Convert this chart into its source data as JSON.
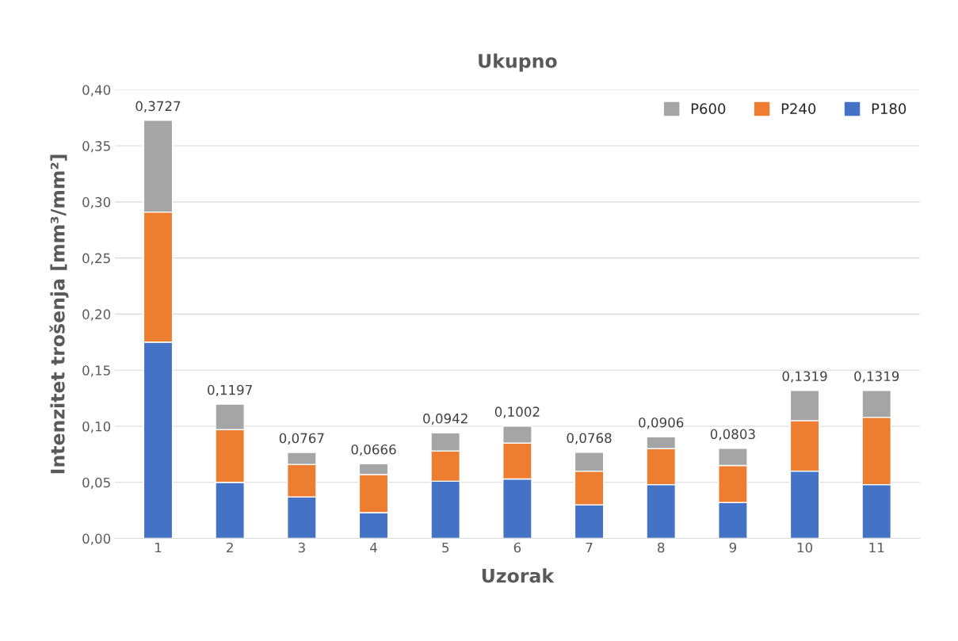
{
  "chart_data": {
    "type": "bar",
    "title": "Ukupno",
    "xlabel": "Uzorak",
    "ylabel": "Intenzitet trošenja [mm³/mm²]",
    "categories": [
      "1",
      "2",
      "3",
      "4",
      "5",
      "6",
      "7",
      "8",
      "9",
      "10",
      "11"
    ],
    "stacked": true,
    "series": [
      {
        "name": "P180",
        "color": "#4472c4",
        "values": [
          0.175,
          0.05,
          0.037,
          0.023,
          0.051,
          0.053,
          0.03,
          0.048,
          0.032,
          0.06,
          0.048
        ]
      },
      {
        "name": "P240",
        "color": "#ed7d31",
        "values": [
          0.116,
          0.047,
          0.029,
          0.034,
          0.027,
          0.032,
          0.03,
          0.032,
          0.033,
          0.045,
          0.06
        ]
      },
      {
        "name": "P600",
        "color": "#a5a5a5",
        "values": [
          0.0817,
          0.0227,
          0.0107,
          0.0096,
          0.0162,
          0.0152,
          0.0168,
          0.0106,
          0.0153,
          0.0269,
          0.0239
        ]
      }
    ],
    "totals": [
      "0,3727",
      "0,1197",
      "0,0767",
      "0,0666",
      "0,0942",
      "0,1002",
      "0,0768",
      "0,0906",
      "0,0803",
      "0,1319",
      "0,1319"
    ],
    "ylim": [
      0,
      0.4
    ],
    "yticks": [
      {
        "value": 0,
        "label": "0,00"
      },
      {
        "value": 0.05,
        "label": "0,05"
      },
      {
        "value": 0.1,
        "label": "0,10"
      },
      {
        "value": 0.15,
        "label": "0,15"
      },
      {
        "value": 0.2,
        "label": "0,20"
      },
      {
        "value": 0.25,
        "label": "0,25"
      },
      {
        "value": 0.3,
        "label": "0,30"
      },
      {
        "value": 0.35,
        "label": "0,35"
      },
      {
        "value": 0.4,
        "label": "0,40"
      }
    ],
    "grid": "y",
    "legend": "top right"
  }
}
